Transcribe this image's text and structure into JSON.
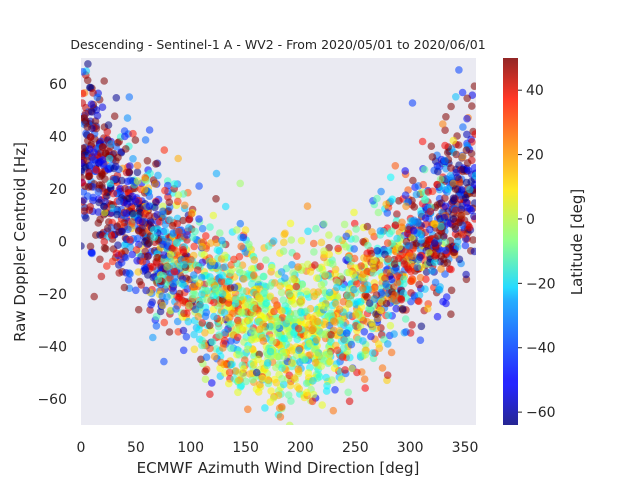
{
  "chart_data": {
    "type": "scatter",
    "title": "Descending - Sentinel-1 A - WV2 - From 2020/05/01 to 2020/06/01",
    "xlabel": "ECMWF Azimuth Wind Direction [deg]",
    "ylabel": "Raw Doppler Centroid [Hz]",
    "xlim": [
      0,
      360
    ],
    "ylim": [
      -70,
      70
    ],
    "xticks": [
      0,
      50,
      100,
      150,
      200,
      250,
      300,
      350
    ],
    "yticks": [
      -60,
      -40,
      -20,
      0,
      20,
      40,
      60
    ],
    "grid": false,
    "background": "#eaeaf2",
    "colormap": "jet",
    "colorbar": {
      "label": "Latitude [deg]",
      "range": [
        -64,
        50
      ],
      "ticks": [
        -60,
        -40,
        -20,
        0,
        20,
        40
      ]
    },
    "pattern": {
      "description_values": "Doppler centroid vs wind direction forms a V / U shape with minimum near 190 deg (~-35 Hz) and maxima near 0 and 360 deg (~+30 Hz); low latitudes near the center, high |latitude| near the edges",
      "min_x": 190,
      "min_y": -35,
      "edge_y": 30,
      "spread_y": 15
    }
  }
}
